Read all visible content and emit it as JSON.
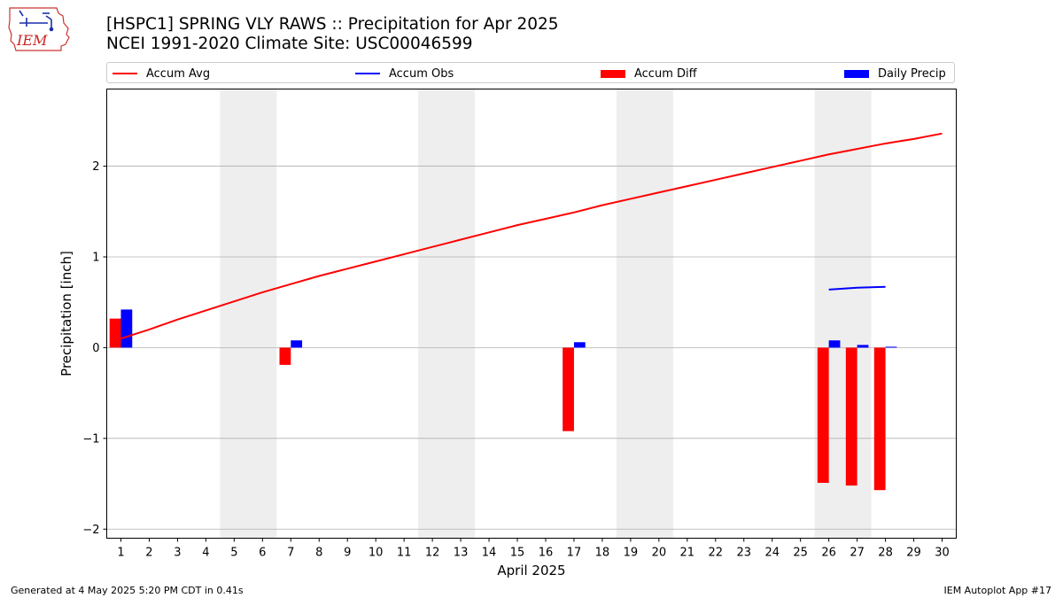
{
  "header": {
    "title": "[HSPC1] SPRING VLY RAWS :: Precipitation for Apr 2025",
    "subtitle": "NCEI 1991-2020 Climate Site: USC00046599"
  },
  "logo": {
    "text": "IEM"
  },
  "footer": {
    "left": "Generated at 4 May 2025 5:20 PM CDT in 0.41s",
    "right": "IEM Autoplot App #17"
  },
  "colors": {
    "accum_avg": "#ff0000",
    "accum_obs": "#0000ff",
    "accum_diff": "#ff0000",
    "daily_precip": "#0000ff",
    "weekend_shade": "#eeeeee",
    "grid": "#b0b0b0"
  },
  "chart_data": {
    "type": "bar",
    "xlabel": "April 2025",
    "ylabel": "Precipitation [inch]",
    "ylim": [
      -2.1,
      2.85
    ],
    "xlim": [
      0.5,
      30.5
    ],
    "yticks": [
      -2,
      -1,
      0,
      1,
      2
    ],
    "ytick_labels": [
      "−2",
      "−1",
      "0",
      "1",
      "2"
    ],
    "days": [
      1,
      2,
      3,
      4,
      5,
      6,
      7,
      8,
      9,
      10,
      11,
      12,
      13,
      14,
      15,
      16,
      17,
      18,
      19,
      20,
      21,
      22,
      23,
      24,
      25,
      26,
      27,
      28,
      29,
      30
    ],
    "grid": "horizontal",
    "legend_position": "top",
    "weekend_bands": [
      [
        4.5,
        6.5
      ],
      [
        11.5,
        13.5
      ],
      [
        18.5,
        20.5
      ],
      [
        25.5,
        27.5
      ]
    ],
    "series": [
      {
        "name": "Accum Avg",
        "kind": "line",
        "x": [
          1,
          2,
          3,
          4,
          5,
          6,
          7,
          8,
          9,
          10,
          11,
          12,
          13,
          14,
          15,
          16,
          17,
          18,
          19,
          20,
          21,
          22,
          23,
          24,
          25,
          26,
          27,
          28,
          29,
          30
        ],
        "values": [
          0.1,
          0.2,
          0.31,
          0.41,
          0.51,
          0.61,
          0.7,
          0.79,
          0.87,
          0.95,
          1.03,
          1.11,
          1.19,
          1.27,
          1.35,
          1.42,
          1.49,
          1.57,
          1.64,
          1.71,
          1.78,
          1.85,
          1.92,
          1.99,
          2.06,
          2.13,
          2.19,
          2.25,
          2.3,
          2.36
        ]
      },
      {
        "name": "Accum Obs",
        "kind": "line",
        "x": [
          26,
          27,
          28
        ],
        "values": [
          0.64,
          0.66,
          0.67
        ]
      },
      {
        "name": "Accum Diff",
        "kind": "bar",
        "x": [
          1,
          7,
          17,
          26,
          27,
          28
        ],
        "values": [
          0.32,
          -0.19,
          -0.92,
          -1.49,
          -1.52,
          -1.57
        ]
      },
      {
        "name": "Daily Precip",
        "kind": "bar",
        "x": [
          1,
          7,
          17,
          26,
          27,
          28
        ],
        "values": [
          0.42,
          0.08,
          0.06,
          0.08,
          0.03,
          0.01
        ]
      }
    ]
  }
}
